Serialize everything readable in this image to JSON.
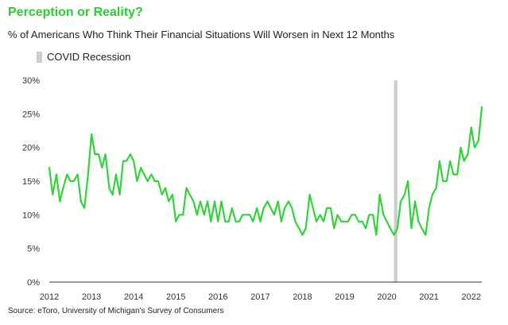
{
  "header": {
    "title": "Perception or Reality?",
    "subtitle": "% of Americans Who Think Their Financial Situations Will Worsen in Next 12 Months"
  },
  "legend": {
    "recession_label": "COVID Recession"
  },
  "footer": {
    "source": "Source: eToro, University of Michigan's Survey of Consumers"
  },
  "colors": {
    "line": "#33d13a",
    "recession_band": "#cccccc",
    "title": "#2ccb35",
    "axis": "#333333"
  },
  "chart_data": {
    "type": "line",
    "title": "Perception or Reality?",
    "subtitle": "% of Americans Who Think Their Financial Situations Will Worsen in Next 12 Months",
    "xlabel": "",
    "ylabel": "",
    "xlim": [
      2012,
      2022.25
    ],
    "ylim": [
      0,
      30
    ],
    "grid": false,
    "legend_position": "top-left",
    "y_ticks": [
      0,
      5,
      10,
      15,
      20,
      25,
      30
    ],
    "y_tick_labels": [
      "0%",
      "5%",
      "10%",
      "15%",
      "20%",
      "25%",
      "30%"
    ],
    "x_ticks": [
      2012,
      2013,
      2014,
      2015,
      2016,
      2017,
      2018,
      2019,
      2020,
      2021,
      2022
    ],
    "x_tick_labels": [
      "2012",
      "2013",
      "2014",
      "2015",
      "2016",
      "2017",
      "2018",
      "2019",
      "2020",
      "2021",
      "2022"
    ],
    "shaded_regions": [
      {
        "name": "COVID Recession",
        "start": 2020.17,
        "end": 2020.25
      }
    ],
    "series": [
      {
        "values": [
          [
            2012.0,
            17
          ],
          [
            2012.08,
            13
          ],
          [
            2012.17,
            16
          ],
          [
            2012.25,
            12
          ],
          [
            2012.33,
            14
          ],
          [
            2012.42,
            16
          ],
          [
            2012.5,
            15
          ],
          [
            2012.58,
            15
          ],
          [
            2012.67,
            16
          ],
          [
            2012.75,
            12
          ],
          [
            2012.83,
            11
          ],
          [
            2012.92,
            16
          ],
          [
            2013.0,
            22
          ],
          [
            2013.08,
            19
          ],
          [
            2013.17,
            19
          ],
          [
            2013.25,
            17
          ],
          [
            2013.33,
            19
          ],
          [
            2013.42,
            14
          ],
          [
            2013.5,
            13
          ],
          [
            2013.58,
            16
          ],
          [
            2013.67,
            13
          ],
          [
            2013.75,
            18
          ],
          [
            2013.83,
            18
          ],
          [
            2013.92,
            19
          ],
          [
            2014.0,
            18
          ],
          [
            2014.08,
            15
          ],
          [
            2014.17,
            17
          ],
          [
            2014.25,
            16
          ],
          [
            2014.33,
            15
          ],
          [
            2014.42,
            16
          ],
          [
            2014.5,
            15
          ],
          [
            2014.58,
            15
          ],
          [
            2014.67,
            13
          ],
          [
            2014.75,
            14
          ],
          [
            2014.83,
            12
          ],
          [
            2014.92,
            13
          ],
          [
            2015.0,
            9
          ],
          [
            2015.08,
            10
          ],
          [
            2015.17,
            10
          ],
          [
            2015.25,
            14
          ],
          [
            2015.33,
            13
          ],
          [
            2015.42,
            12
          ],
          [
            2015.5,
            10
          ],
          [
            2015.58,
            12
          ],
          [
            2015.67,
            10
          ],
          [
            2015.75,
            12
          ],
          [
            2015.83,
            9
          ],
          [
            2015.92,
            12
          ],
          [
            2016.0,
            9
          ],
          [
            2016.08,
            12
          ],
          [
            2016.17,
            9
          ],
          [
            2016.25,
            9
          ],
          [
            2016.33,
            11
          ],
          [
            2016.42,
            9
          ],
          [
            2016.5,
            9
          ],
          [
            2016.58,
            10
          ],
          [
            2016.67,
            10
          ],
          [
            2016.75,
            10
          ],
          [
            2016.83,
            9
          ],
          [
            2016.92,
            11
          ],
          [
            2017.0,
            9
          ],
          [
            2017.08,
            11
          ],
          [
            2017.17,
            12
          ],
          [
            2017.25,
            11
          ],
          [
            2017.33,
            10
          ],
          [
            2017.42,
            12
          ],
          [
            2017.5,
            9
          ],
          [
            2017.58,
            11
          ],
          [
            2017.67,
            12
          ],
          [
            2017.75,
            11
          ],
          [
            2017.83,
            9
          ],
          [
            2017.92,
            8
          ],
          [
            2018.0,
            7
          ],
          [
            2018.08,
            8
          ],
          [
            2018.17,
            13
          ],
          [
            2018.25,
            11
          ],
          [
            2018.33,
            9
          ],
          [
            2018.42,
            10
          ],
          [
            2018.5,
            9
          ],
          [
            2018.58,
            11
          ],
          [
            2018.67,
            11
          ],
          [
            2018.75,
            8
          ],
          [
            2018.83,
            10
          ],
          [
            2018.92,
            9
          ],
          [
            2019.0,
            9
          ],
          [
            2019.08,
            9
          ],
          [
            2019.17,
            10
          ],
          [
            2019.25,
            10
          ],
          [
            2019.33,
            9
          ],
          [
            2019.42,
            9
          ],
          [
            2019.5,
            8
          ],
          [
            2019.58,
            10
          ],
          [
            2019.67,
            10
          ],
          [
            2019.75,
            7
          ],
          [
            2019.83,
            13
          ],
          [
            2019.92,
            10
          ],
          [
            2020.0,
            9
          ],
          [
            2020.08,
            8
          ],
          [
            2020.17,
            7
          ],
          [
            2020.25,
            8
          ],
          [
            2020.33,
            12
          ],
          [
            2020.42,
            13
          ],
          [
            2020.5,
            15
          ],
          [
            2020.58,
            8
          ],
          [
            2020.67,
            12
          ],
          [
            2020.75,
            9
          ],
          [
            2020.83,
            8
          ],
          [
            2020.92,
            7
          ],
          [
            2021.0,
            11
          ],
          [
            2021.08,
            13
          ],
          [
            2021.17,
            14
          ],
          [
            2021.25,
            18
          ],
          [
            2021.33,
            15
          ],
          [
            2021.42,
            15
          ],
          [
            2021.5,
            18
          ],
          [
            2021.58,
            16
          ],
          [
            2021.67,
            16
          ],
          [
            2021.75,
            20
          ],
          [
            2021.83,
            18
          ],
          [
            2021.92,
            19
          ],
          [
            2022.0,
            23
          ],
          [
            2022.08,
            20
          ],
          [
            2022.17,
            21
          ],
          [
            2022.25,
            26
          ]
        ]
      }
    ]
  }
}
